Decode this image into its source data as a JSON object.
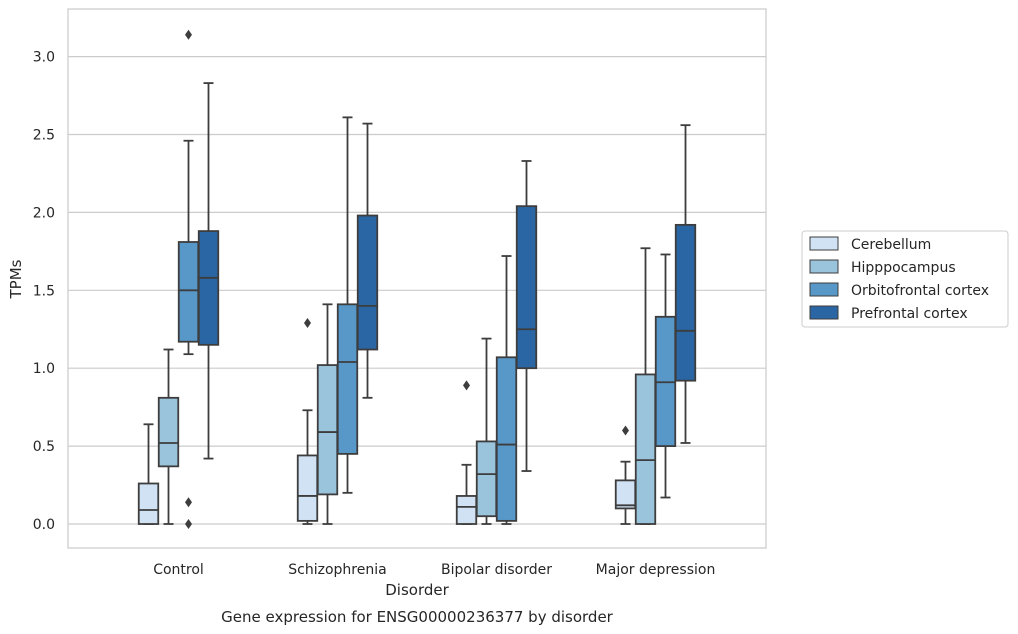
{
  "chart_data": {
    "type": "box",
    "title": "",
    "caption": "Gene expression for ENSG00000236377 by disorder",
    "xlabel": "Disorder",
    "ylabel": "TPMs",
    "ylim": [
      -0.15,
      3.3
    ],
    "yticks": [
      "0.0",
      "0.5",
      "1.0",
      "1.5",
      "2.0",
      "2.5",
      "3.0"
    ],
    "grid": "horizontal",
    "legend_position": "right",
    "categories": [
      "Control",
      "Schizophrenia",
      "Bipolar disorder",
      "Major depression"
    ],
    "series": [
      {
        "name": "Cerebellum",
        "color": "#d0e2f3",
        "boxes": [
          {
            "whisker_low": 0.0,
            "q1": 0.0,
            "median": 0.09,
            "q3": 0.26,
            "whisker_high": 0.64,
            "outliers": []
          },
          {
            "whisker_low": 0.0,
            "q1": 0.02,
            "median": 0.18,
            "q3": 0.44,
            "whisker_high": 0.73,
            "outliers": [
              1.29
            ]
          },
          {
            "whisker_low": 0.0,
            "q1": 0.0,
            "median": 0.11,
            "q3": 0.18,
            "whisker_high": 0.38,
            "outliers": [
              0.89
            ]
          },
          {
            "whisker_low": 0.0,
            "q1": 0.1,
            "median": 0.12,
            "q3": 0.28,
            "whisker_high": 0.4,
            "outliers": [
              0.6
            ]
          }
        ]
      },
      {
        "name": "Hipppocampus",
        "color": "#9ac3dc",
        "boxes": [
          {
            "whisker_low": 0.0,
            "q1": 0.37,
            "median": 0.52,
            "q3": 0.81,
            "whisker_high": 1.12,
            "outliers": []
          },
          {
            "whisker_low": 0.0,
            "q1": 0.19,
            "median": 0.59,
            "q3": 1.02,
            "whisker_high": 1.41,
            "outliers": []
          },
          {
            "whisker_low": 0.0,
            "q1": 0.05,
            "median": 0.32,
            "q3": 0.53,
            "whisker_high": 1.19,
            "outliers": []
          },
          {
            "whisker_low": 0.0,
            "q1": 0.0,
            "median": 0.41,
            "q3": 0.96,
            "whisker_high": 1.77,
            "outliers": []
          }
        ]
      },
      {
        "name": "Orbitofrontal cortex",
        "color": "#5798c8",
        "boxes": [
          {
            "whisker_low": 1.09,
            "q1": 1.17,
            "median": 1.5,
            "q3": 1.81,
            "whisker_high": 2.46,
            "outliers": [
              0.14,
              0.0,
              3.14
            ]
          },
          {
            "whisker_low": 0.2,
            "q1": 0.45,
            "median": 1.04,
            "q3": 1.41,
            "whisker_high": 2.61,
            "outliers": []
          },
          {
            "whisker_low": 0.0,
            "q1": 0.02,
            "median": 0.51,
            "q3": 1.07,
            "whisker_high": 1.72,
            "outliers": []
          },
          {
            "whisker_low": 0.17,
            "q1": 0.5,
            "median": 0.91,
            "q3": 1.33,
            "whisker_high": 1.73,
            "outliers": []
          }
        ]
      },
      {
        "name": "Prefrontal cortex",
        "color": "#2a66a3",
        "boxes": [
          {
            "whisker_low": 0.42,
            "q1": 1.15,
            "median": 1.58,
            "q3": 1.88,
            "whisker_high": 2.83,
            "outliers": []
          },
          {
            "whisker_low": 0.81,
            "q1": 1.12,
            "median": 1.4,
            "q3": 1.98,
            "whisker_high": 2.57,
            "outliers": []
          },
          {
            "whisker_low": 0.34,
            "q1": 1.0,
            "median": 1.25,
            "q3": 2.04,
            "whisker_high": 2.33,
            "outliers": []
          },
          {
            "whisker_low": 0.52,
            "q1": 0.92,
            "median": 1.24,
            "q3": 1.92,
            "whisker_high": 2.56,
            "outliers": []
          }
        ]
      }
    ]
  }
}
